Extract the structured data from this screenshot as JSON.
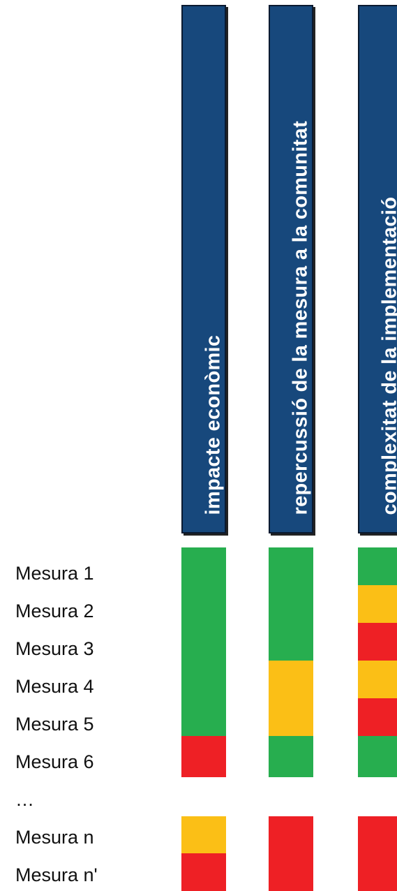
{
  "columns": [
    {
      "id": "impacte",
      "header": "impacte econòmic"
    },
    {
      "id": "repercussio",
      "header": "repercussió de la mesura a la comunitat"
    },
    {
      "id": "complexitat",
      "header": "complexitat de la implementació"
    }
  ],
  "rows": [
    "Mesura 1",
    "Mesura 2",
    "Mesura 3",
    "Mesura 4",
    "Mesura 5",
    "Mesura 6",
    "…",
    "Mesura n",
    "Mesura n'"
  ],
  "colors": {
    "green": "#27ae4f",
    "yellow": "#fbbf16",
    "red": "#ee2025",
    "header_blue": "#17487c"
  },
  "ratings": {
    "impacte": {
      "Mesura 1": "green",
      "Mesura 2": "green",
      "Mesura 3": "green",
      "Mesura 4": "green",
      "Mesura 5": "green",
      "Mesura 6": "red",
      "Mesura n": "yellow",
      "Mesura n'": "red"
    },
    "repercussio": {
      "Mesura 1": "green",
      "Mesura 2": "green",
      "Mesura 3": "green",
      "Mesura 4": "yellow",
      "Mesura 5": "yellow",
      "Mesura 6": "green",
      "Mesura n": "red",
      "Mesura n'": "red"
    },
    "complexitat": {
      "Mesura 1": "green",
      "Mesura 2": "yellow",
      "Mesura 3": "red",
      "Mesura 4": "yellow",
      "Mesura 5": "red",
      "Mesura 6": "green",
      "Mesura n": "red",
      "Mesura n'": "red"
    }
  }
}
